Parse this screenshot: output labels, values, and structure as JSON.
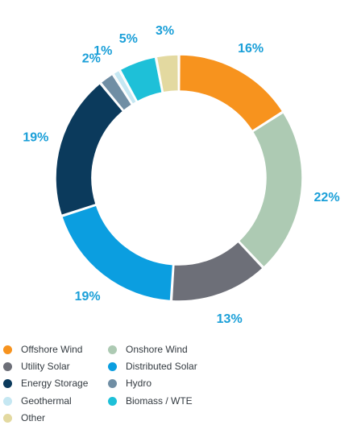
{
  "chart_data": {
    "type": "pie",
    "style": "donut",
    "legend_position": "bottom",
    "ring_background_color": "#e6e8ea",
    "label_color": "#1a9fd8",
    "slices": [
      {
        "label": "Offshore Wind",
        "value": 16,
        "value_label": "16%",
        "color": "#f7931e"
      },
      {
        "label": "Onshore Wind",
        "value": 22,
        "value_label": "22%",
        "color": "#adcab3"
      },
      {
        "label": "Utility Solar",
        "value": 13,
        "value_label": "13%",
        "color": "#6d6f78"
      },
      {
        "label": "Distributed Solar",
        "value": 19,
        "value_label": "19%",
        "color": "#0b9ee0"
      },
      {
        "label": "Energy Storage",
        "value": 19,
        "value_label": "19%",
        "color": "#0b3a5c"
      },
      {
        "label": "Hydro",
        "value": 2,
        "value_label": "2%",
        "color": "#708ea4"
      },
      {
        "label": "Geothermal",
        "value": 1,
        "value_label": "1%",
        "color": "#c5e7f2"
      },
      {
        "label": "Biomass / WTE",
        "value": 5,
        "value_label": "5%",
        "color": "#1ec0d8"
      },
      {
        "label": "Other",
        "value": 3,
        "value_label": "3%",
        "color": "#e3d9a0"
      }
    ],
    "legend_order": [
      "Offshore Wind",
      "Onshore Wind",
      "Utility Solar",
      "Distributed Solar",
      "Energy Storage",
      "Hydro",
      "Geothermal",
      "Biomass / WTE",
      "Other"
    ]
  }
}
